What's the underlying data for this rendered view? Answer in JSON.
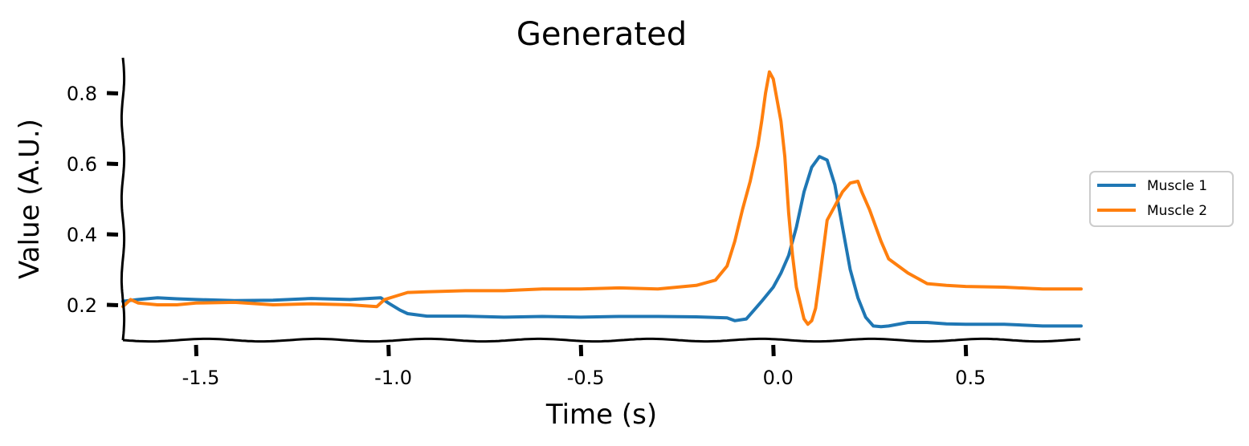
{
  "chart_data": {
    "type": "line",
    "title": "Generated",
    "xlabel": "Time (s)",
    "ylabel": "Value (A.U.)",
    "xlim": [
      -1.69,
      0.8
    ],
    "ylim": [
      0.1,
      0.9
    ],
    "xticks": [
      -1.5,
      -1.0,
      -0.5,
      0.0,
      0.5
    ],
    "xtick_labels": [
      "-1.5",
      "-1.0",
      "-0.5",
      "0.0",
      "0.5"
    ],
    "yticks": [
      0.2,
      0.4,
      0.6,
      0.8
    ],
    "ytick_labels": [
      "0.2",
      "0.4",
      "0.6",
      "0.8"
    ],
    "grid": false,
    "legend_position": "right",
    "series": [
      {
        "name": "Muscle 1",
        "color": "#1f77b4",
        "x": [
          -1.69,
          -1.65,
          -1.6,
          -1.55,
          -1.5,
          -1.4,
          -1.3,
          -1.2,
          -1.1,
          -1.02,
          -1.0,
          -0.97,
          -0.95,
          -0.9,
          -0.8,
          -0.7,
          -0.6,
          -0.5,
          -0.4,
          -0.3,
          -0.2,
          -0.12,
          -0.1,
          -0.07,
          -0.05,
          -0.03,
          0.0,
          0.02,
          0.04,
          0.06,
          0.08,
          0.1,
          0.12,
          0.14,
          0.16,
          0.18,
          0.2,
          0.22,
          0.24,
          0.26,
          0.28,
          0.3,
          0.35,
          0.4,
          0.45,
          0.5,
          0.6,
          0.7,
          0.8
        ],
        "y": [
          0.21,
          0.215,
          0.22,
          0.217,
          0.215,
          0.212,
          0.213,
          0.218,
          0.215,
          0.22,
          0.205,
          0.185,
          0.175,
          0.168,
          0.168,
          0.165,
          0.167,
          0.165,
          0.167,
          0.167,
          0.166,
          0.163,
          0.155,
          0.16,
          0.185,
          0.21,
          0.25,
          0.29,
          0.34,
          0.42,
          0.52,
          0.59,
          0.62,
          0.61,
          0.54,
          0.42,
          0.3,
          0.22,
          0.165,
          0.14,
          0.138,
          0.14,
          0.15,
          0.15,
          0.146,
          0.145,
          0.145,
          0.14,
          0.14
        ]
      },
      {
        "name": "Muscle 2",
        "color": "#ff7f0e",
        "x": [
          -1.69,
          -1.67,
          -1.65,
          -1.6,
          -1.55,
          -1.5,
          -1.4,
          -1.3,
          -1.2,
          -1.1,
          -1.03,
          -1.01,
          -0.98,
          -0.95,
          -0.9,
          -0.8,
          -0.7,
          -0.6,
          -0.5,
          -0.4,
          -0.3,
          -0.2,
          -0.15,
          -0.12,
          -0.1,
          -0.08,
          -0.06,
          -0.04,
          -0.03,
          -0.02,
          -0.01,
          0.0,
          0.01,
          0.02,
          0.03,
          0.04,
          0.05,
          0.06,
          0.08,
          0.09,
          0.1,
          0.11,
          0.12,
          0.14,
          0.16,
          0.18,
          0.2,
          0.22,
          0.23,
          0.25,
          0.28,
          0.3,
          0.35,
          0.4,
          0.45,
          0.5,
          0.6,
          0.7,
          0.8
        ],
        "y": [
          0.195,
          0.215,
          0.205,
          0.2,
          0.2,
          0.205,
          0.207,
          0.2,
          0.203,
          0.2,
          0.195,
          0.215,
          0.225,
          0.235,
          0.237,
          0.24,
          0.24,
          0.245,
          0.245,
          0.248,
          0.245,
          0.255,
          0.27,
          0.31,
          0.38,
          0.47,
          0.55,
          0.65,
          0.72,
          0.8,
          0.86,
          0.84,
          0.78,
          0.72,
          0.62,
          0.46,
          0.34,
          0.25,
          0.16,
          0.145,
          0.155,
          0.19,
          0.27,
          0.44,
          0.48,
          0.52,
          0.545,
          0.55,
          0.52,
          0.47,
          0.38,
          0.33,
          0.29,
          0.26,
          0.255,
          0.252,
          0.25,
          0.245,
          0.245
        ]
      }
    ]
  }
}
